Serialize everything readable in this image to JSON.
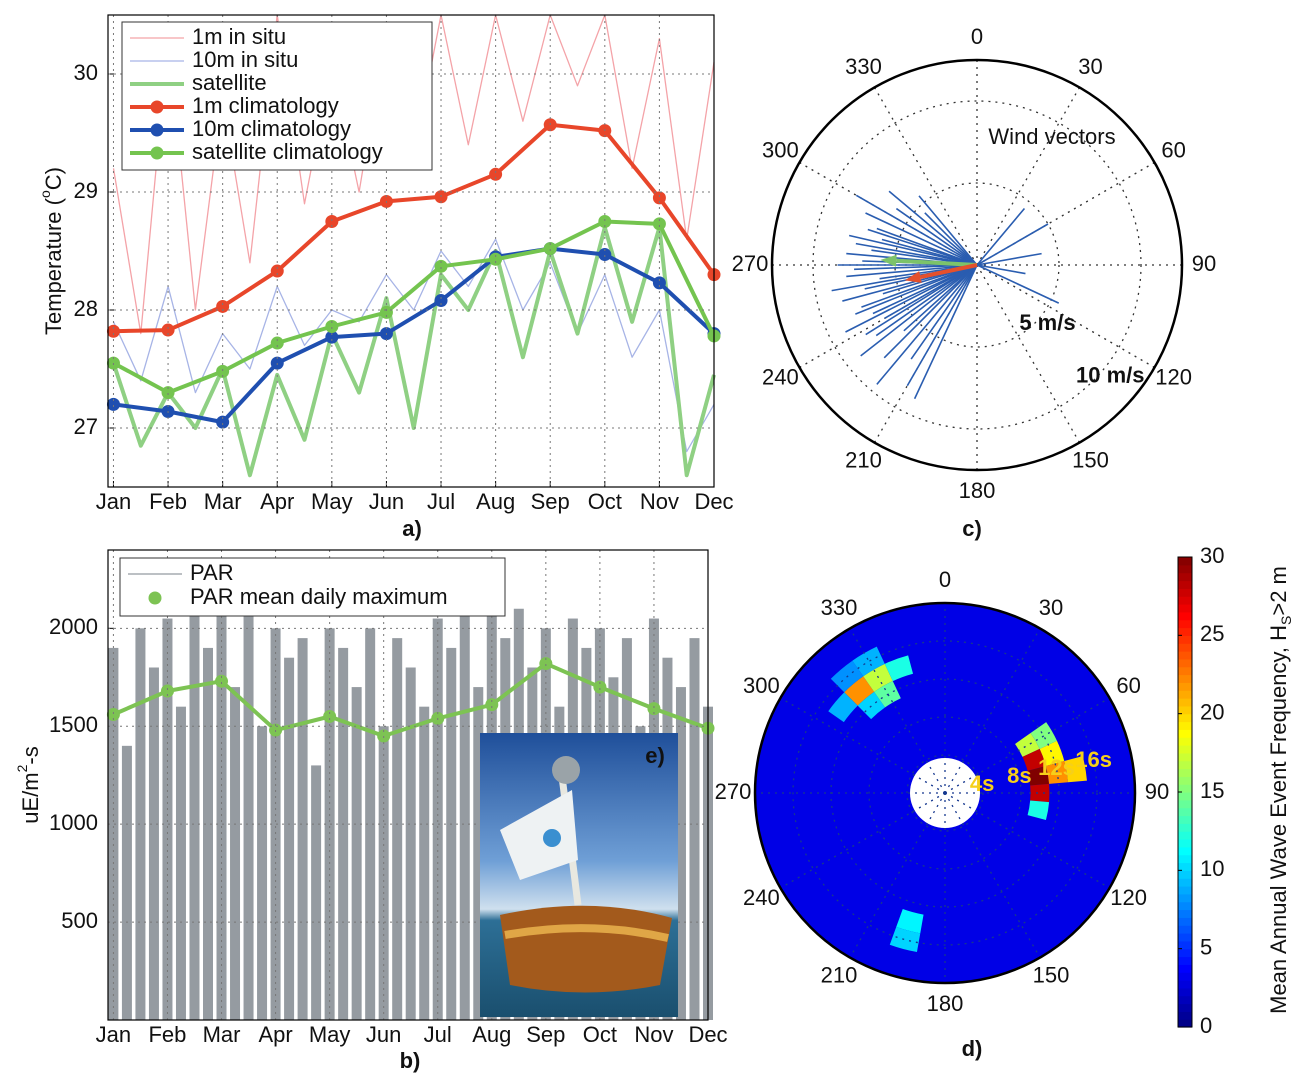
{
  "chart_data": [
    {
      "type": "line",
      "panel_label": "a)",
      "ylabel": "Temperature (",
      "ylabel_sup": "o",
      "ylabel_end": "C)",
      "xlim": [
        0.9,
        12
      ],
      "xticks": [
        {
          "value": 1,
          "label": "Jan"
        },
        {
          "value": 2,
          "label": "Feb"
        },
        {
          "value": 3,
          "label": "Mar"
        },
        {
          "value": 4,
          "label": "Apr"
        },
        {
          "value": 5,
          "label": "May"
        },
        {
          "value": 6,
          "label": "Jun"
        },
        {
          "value": 7,
          "label": "Jul"
        },
        {
          "value": 8,
          "label": "Aug"
        },
        {
          "value": 9,
          "label": "Sep"
        },
        {
          "value": 10,
          "label": "Oct"
        },
        {
          "value": 11,
          "label": "Nov"
        },
        {
          "value": 12,
          "label": "Dec"
        }
      ],
      "ylim": [
        26.5,
        30.5
      ],
      "yticks": [
        27,
        28,
        29,
        30
      ],
      "grid": true,
      "legend": "upper left",
      "series": [
        {
          "name": "1m in situ",
          "color": "#f4a3a8",
          "style": "thin",
          "marker": false,
          "x": [
            1,
            1.5,
            2,
            2.5,
            3,
            3.5,
            4,
            4.5,
            5,
            5.5,
            6,
            6.5,
            7,
            7.5,
            8,
            8.5,
            9,
            9.5,
            10,
            10.5,
            11,
            11.5,
            12
          ],
          "values": [
            29.2,
            27.8,
            30.3,
            28.0,
            29.8,
            28.4,
            30.5,
            28.9,
            30.1,
            29.0,
            30.4,
            29.3,
            30.5,
            29.4,
            30.5,
            29.6,
            30.5,
            29.9,
            30.5,
            29.2,
            30.3,
            28.6,
            30.1
          ]
        },
        {
          "name": "10m in situ",
          "color": "#a7b4e6",
          "style": "thin",
          "marker": false,
          "x": [
            1,
            1.5,
            2,
            2.5,
            3,
            3.5,
            4,
            4.5,
            5,
            5.5,
            6,
            6.5,
            7,
            7.5,
            8,
            8.5,
            9,
            9.5,
            10,
            10.5,
            11,
            11.5,
            12
          ],
          "values": [
            27.9,
            27.4,
            28.2,
            27.3,
            27.8,
            27.5,
            28.2,
            27.7,
            28.0,
            27.9,
            28.3,
            28.0,
            28.5,
            28.2,
            28.6,
            28.0,
            28.4,
            27.8,
            28.3,
            27.6,
            28.0,
            26.8,
            27.2
          ]
        },
        {
          "name": "satellite",
          "color": "#8fd083",
          "style": "thick",
          "marker": false,
          "x": [
            1,
            1.5,
            2,
            2.5,
            3,
            3.5,
            4,
            4.5,
            5,
            5.5,
            6,
            6.5,
            7,
            7.5,
            8,
            8.5,
            9,
            9.5,
            10,
            10.5,
            11,
            11.5,
            12
          ],
          "values": [
            27.55,
            26.85,
            27.3,
            27.0,
            27.5,
            26.6,
            27.45,
            26.9,
            27.8,
            27.3,
            28.1,
            27.0,
            28.3,
            28.0,
            28.5,
            27.6,
            28.5,
            27.8,
            28.7,
            27.9,
            28.7,
            26.6,
            27.45
          ]
        },
        {
          "name": "1m climatology",
          "color": "#e8462a",
          "style": "thick",
          "marker": true,
          "x": [
            1,
            2,
            3,
            4,
            5,
            6,
            7,
            8,
            9,
            10,
            11,
            12
          ],
          "values": [
            27.82,
            27.83,
            28.03,
            28.33,
            28.75,
            28.92,
            28.96,
            29.15,
            29.57,
            29.52,
            28.95,
            28.3
          ]
        },
        {
          "name": "10m climatology",
          "color": "#1f4fb0",
          "style": "thick",
          "marker": true,
          "x": [
            1,
            2,
            3,
            4,
            5,
            6,
            7,
            8,
            9,
            10,
            11,
            12
          ],
          "values": [
            27.2,
            27.14,
            27.05,
            27.55,
            27.77,
            27.8,
            28.08,
            28.45,
            28.52,
            28.47,
            28.23,
            27.8
          ]
        },
        {
          "name": "satellite climatology",
          "color": "#74c44f",
          "style": "thick",
          "marker": true,
          "x": [
            1,
            2,
            3,
            4,
            5,
            6,
            7,
            8,
            9,
            10,
            11,
            12
          ],
          "values": [
            27.55,
            27.3,
            27.48,
            27.72,
            27.86,
            27.98,
            28.37,
            28.43,
            28.52,
            28.75,
            28.73,
            27.78
          ]
        }
      ]
    },
    {
      "type": "bar",
      "panel_label": "b)",
      "inset_label": "e)",
      "ylabel": "uE/m",
      "ylabel_sup": "2",
      "ylabel_end": "-s",
      "xlim": [
        0.9,
        12
      ],
      "xticks": [
        {
          "value": 1,
          "label": "Jan"
        },
        {
          "value": 2,
          "label": "Feb"
        },
        {
          "value": 3,
          "label": "Mar"
        },
        {
          "value": 4,
          "label": "Apr"
        },
        {
          "value": 5,
          "label": "May"
        },
        {
          "value": 6,
          "label": "Jun"
        },
        {
          "value": 7,
          "label": "Jul"
        },
        {
          "value": 8,
          "label": "Aug"
        },
        {
          "value": 9,
          "label": "Sep"
        },
        {
          "value": 10,
          "label": "Oct"
        },
        {
          "value": 11,
          "label": "Nov"
        },
        {
          "value": 12,
          "label": "Dec"
        }
      ],
      "ylim": [
        0,
        2400
      ],
      "yticks": [
        500,
        1000,
        1500,
        2000
      ],
      "grid": true,
      "legend": "upper left",
      "series": [
        {
          "name": "PAR",
          "color": "#959ba1",
          "kind": "bar",
          "x": [
            1,
            1.25,
            1.5,
            1.75,
            2,
            2.25,
            2.5,
            2.75,
            3,
            3.25,
            3.5,
            3.75,
            4,
            4.25,
            4.5,
            4.75,
            5,
            5.25,
            5.5,
            5.75,
            6,
            6.25,
            6.5,
            6.75,
            7,
            7.25,
            7.5,
            7.75,
            8,
            8.25,
            8.5,
            8.75,
            9,
            9.25,
            9.5,
            9.75,
            10,
            10.25,
            10.5,
            10.75,
            11,
            11.25,
            11.5,
            11.75,
            12
          ],
          "values": [
            1900,
            1400,
            2000,
            1800,
            2050,
            1600,
            2100,
            1900,
            2150,
            1700,
            2200,
            1500,
            2000,
            1850,
            1950,
            1300,
            2000,
            1900,
            1700,
            2000,
            1500,
            1950,
            1800,
            1600,
            2050,
            1900,
            2100,
            1700,
            2150,
            1950,
            2100,
            1800,
            2000,
            1600,
            2050,
            1900,
            2000,
            1750,
            1950,
            1500,
            2050,
            1850,
            1700,
            1950,
            1600
          ]
        },
        {
          "name": "PAR mean daily maximum",
          "color": "#7dc353",
          "kind": "line",
          "marker": true,
          "x": [
            1,
            2,
            3,
            4,
            5,
            6,
            7,
            8,
            9,
            10,
            11,
            12
          ],
          "values": [
            1560,
            1680,
            1730,
            1480,
            1550,
            1450,
            1540,
            1610,
            1820,
            1700,
            1590,
            1490
          ]
        }
      ]
    },
    {
      "type": "compass",
      "panel_label": "c)",
      "annotation": "Wind vectors",
      "rlim": [
        0,
        12.5
      ],
      "rticks": [
        {
          "value": 5,
          "label": "5 m/s"
        },
        {
          "value": 10,
          "label": "10 m/s"
        }
      ],
      "angle_ticks": [
        0,
        30,
        60,
        90,
        120,
        150,
        180,
        210,
        240,
        270,
        300,
        330
      ],
      "vectors": {
        "color": "#2a5db0",
        "direction": [
          205,
          210,
          215,
          220,
          225,
          228,
          232,
          235,
          238,
          240,
          243,
          245,
          248,
          250,
          253,
          255,
          258,
          260,
          262,
          265,
          268,
          270,
          272,
          275,
          278,
          280,
          283,
          285,
          288,
          290,
          295,
          300,
          305,
          310,
          315,
          320,
          40,
          60,
          80,
          100,
          115
        ],
        "speed": [
          9,
          8.5,
          7,
          9.5,
          8,
          6,
          9,
          7.5,
          8,
          6.5,
          9,
          7,
          8,
          7.5,
          6,
          8.5,
          7,
          9,
          6,
          8,
          7.5,
          8.5,
          7,
          8,
          6.5,
          7.5,
          8,
          6,
          7,
          6.5,
          7.5,
          8.5,
          6,
          7,
          4.5,
          5.5,
          4.5,
          5,
          4,
          3,
          5.5
        ]
      },
      "mean_vectors": [
        {
          "color": "#7cc36a",
          "direction": 273,
          "speed": 5.9
        },
        {
          "color": "#e4502c",
          "direction": 258,
          "speed": 4.5
        }
      ]
    },
    {
      "type": "polar_heatmap",
      "panel_label": "d)",
      "rlim": [
        0,
        20
      ],
      "rticks": [
        {
          "value": 4,
          "label": "4s"
        },
        {
          "value": 8,
          "label": "8s"
        },
        {
          "value": 12,
          "label": "12s"
        },
        {
          "value": 16,
          "label": "16s"
        }
      ],
      "angle_ticks": [
        0,
        30,
        60,
        90,
        120,
        150,
        180,
        210,
        240,
        270,
        300,
        330
      ],
      "colormap": "jet",
      "base_value": 3,
      "cells": {
        "direction": [
          320,
          330,
          340,
          310,
          320,
          330,
          320,
          330,
          60,
          70,
          80,
          90,
          70,
          80,
          80,
          100,
          60,
          195,
          195
        ],
        "period": [
          14,
          14,
          14,
          14,
          12,
          12,
          16,
          16,
          10,
          10,
          10,
          10,
          12,
          12,
          14,
          10,
          12,
          14,
          16
        ],
        "values": [
          22,
          17,
          12,
          9,
          10,
          14,
          8,
          9,
          17,
          28,
          30,
          28,
          19,
          22,
          20,
          12,
          15,
          11,
          10
        ]
      },
      "colorbar": {
        "label": "Mean Annual Wave Event Frequency, H",
        "label_sub": "S",
        "label_end": ">2 m",
        "lim": [
          0,
          30
        ],
        "ticks": [
          0,
          5,
          10,
          15,
          20,
          25,
          30
        ]
      }
    }
  ]
}
